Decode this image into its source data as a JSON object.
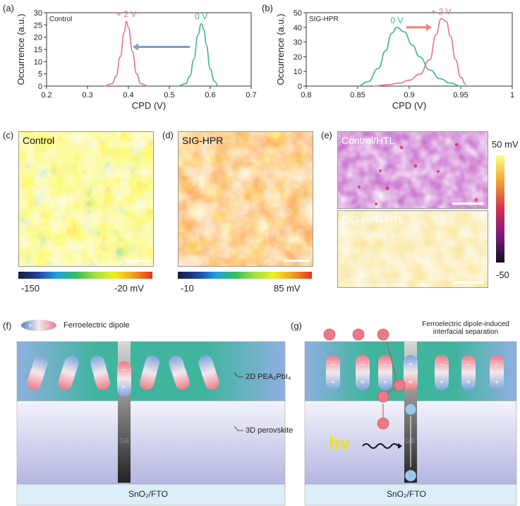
{
  "panel_labels": {
    "a": "(a)",
    "b": "(b)",
    "c": "(c)",
    "d": "(d)",
    "e": "(e)",
    "f": "(f)",
    "g": "(g)"
  },
  "chart_data": [
    {
      "type": "line",
      "panel": "a",
      "tag": "Control",
      "xlabel": "CPD (V)",
      "ylabel": "Occurrence (a.u.)",
      "xlim": [
        0.2,
        0.7
      ],
      "ylim": [
        0,
        30
      ],
      "xticks": [
        "0.2",
        "0.3",
        "0.4",
        "0.5",
        "0.6",
        "0.7"
      ],
      "yticks": [
        "0",
        "5",
        "10",
        "15",
        "20",
        "25",
        "30"
      ],
      "series": [
        {
          "name": "+ 2 V",
          "color": "#e8728a",
          "x": [
            0.34,
            0.36,
            0.37,
            0.38,
            0.39,
            0.395,
            0.4,
            0.41,
            0.42,
            0.43,
            0.45
          ],
          "y": [
            0,
            1,
            4,
            12,
            22,
            26.5,
            24,
            14,
            5,
            1,
            0
          ]
        },
        {
          "name": "0 V",
          "color": "#3bb59a",
          "x": [
            0.52,
            0.54,
            0.55,
            0.56,
            0.57,
            0.578,
            0.585,
            0.59,
            0.6,
            0.61,
            0.62
          ],
          "y": [
            0,
            1,
            4,
            11,
            21,
            25.5,
            23,
            17,
            7,
            2,
            0
          ]
        }
      ],
      "arrow": {
        "from": 0.55,
        "to": 0.41,
        "y": 16,
        "color": "#7f9cc4"
      }
    },
    {
      "type": "line",
      "panel": "b",
      "tag": "SIG-HPR",
      "xlabel": "CPD (V)",
      "ylabel": "Occurrence (a.u.)",
      "xlim": [
        0.8,
        1.0
      ],
      "ylim": [
        0,
        50
      ],
      "xticks": [
        "0.8",
        "0.85",
        "0.9",
        "0.95",
        "1"
      ],
      "yticks": [
        "0",
        "10",
        "20",
        "30",
        "40",
        "50"
      ],
      "series": [
        {
          "name": "0 V",
          "color": "#3bb59a",
          "x": [
            0.85,
            0.86,
            0.87,
            0.877,
            0.883,
            0.888,
            0.895,
            0.903,
            0.91,
            0.92,
            0.93,
            0.94,
            0.95
          ],
          "y": [
            0,
            3,
            12,
            24,
            36,
            40,
            37,
            28,
            20,
            11,
            5,
            2,
            0
          ]
        },
        {
          "name": "+ 2 V",
          "color": "#e8728a",
          "x": [
            0.865,
            0.88,
            0.89,
            0.9,
            0.91,
            0.92,
            0.926,
            0.931,
            0.936,
            0.94,
            0.945,
            0.95,
            0.955
          ],
          "y": [
            0,
            1,
            2,
            4,
            8,
            18,
            35,
            46,
            44,
            34,
            18,
            6,
            1
          ]
        }
      ],
      "arrow": {
        "from": 0.897,
        "to": 0.922,
        "y": 40,
        "color": "#f08070"
      }
    }
  ],
  "maps": {
    "c": {
      "label": "Control",
      "cb_min": "-150",
      "cb_max": "-20 mV"
    },
    "d": {
      "label": "SIG-HPR",
      "cb_min": "-10",
      "cb_max": "85 mV"
    },
    "e_top": {
      "label": "Control/HTL"
    },
    "e_bottom": {
      "label": "SIG-HPR/HTL"
    },
    "e_cb": {
      "max": "50 mV",
      "min": "-50"
    }
  },
  "schematic_f": {
    "legend": "Ferroelectric dipole",
    "label_2d": "2D PEA₂PbI₄",
    "label_3d": "3D perovskite",
    "gb": "GB",
    "substrate": "SnO₂/FTO"
  },
  "schematic_g": {
    "title_line1": "Ferroelectric dipole-induced",
    "title_line2": "interfacial separation",
    "hv": "hv",
    "gb": "GB",
    "hole": "h⁺",
    "electron": "e⁻",
    "substrate": "SnO₂/FTO"
  },
  "colors": {
    "pink": "#e8728a",
    "teal": "#3bb59a",
    "blue_arrow": "#7f9cc4",
    "orange_arrow": "#f08070",
    "hv": "#f0e020"
  }
}
